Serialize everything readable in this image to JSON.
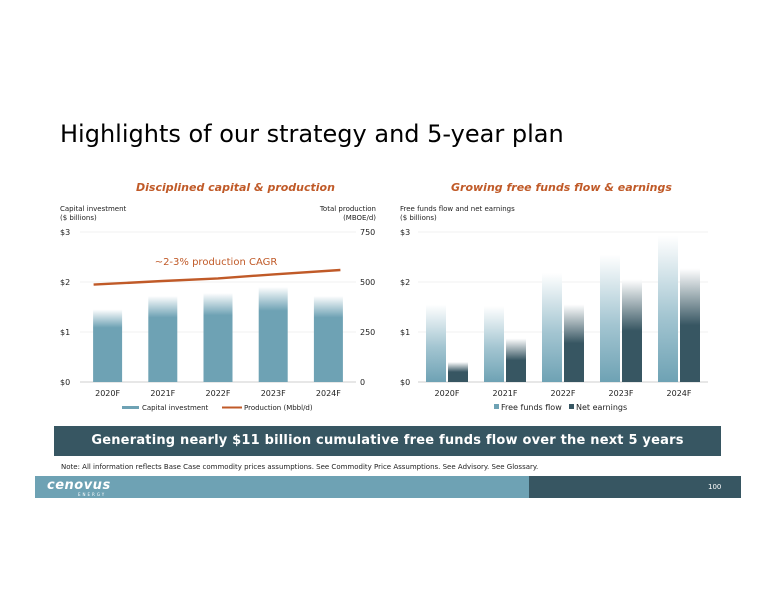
{
  "slide": {
    "title": "Highlights of our strategy and 5-year plan",
    "banner": "Generating nearly $11 billion cumulative free funds flow over the next 5 years",
    "note": "Note: All information reflects Base Case commodity prices assumptions. See Commodity Price Assumptions. See Advisory. See Glossary.",
    "logo": "cenovus",
    "logo_sub": "ENERGY",
    "page_number": "100"
  },
  "colors": {
    "bar_blue": "#6ea2b4",
    "bar_dark": "#375662",
    "line_orange": "#c05a28",
    "banner": "#375662"
  },
  "chart_data": [
    {
      "type": "bar",
      "title": "Disciplined capital & production",
      "ylabel": "Capital investment\n($ billions)",
      "y2label": "Total production\n(MBOE/d)",
      "categories": [
        "2020F",
        "2021F",
        "2022F",
        "2023F",
        "2024F"
      ],
      "ylim": [
        0,
        3
      ],
      "y2lim": [
        0,
        750
      ],
      "yticks": [
        "$0",
        "$1",
        "$2",
        "$3"
      ],
      "y2ticks": [
        "0",
        "250",
        "500",
        "750"
      ],
      "series": [
        {
          "name": "Capital investment",
          "type": "bar",
          "axis": "left",
          "values": [
            1.45,
            1.72,
            1.78,
            1.9,
            1.72
          ]
        },
        {
          "name": "Production (Mbbl/d)",
          "type": "line",
          "axis": "right",
          "values": [
            487,
            505,
            518,
            538,
            560
          ]
        }
      ],
      "annotation": "~2-3% production CAGR",
      "legend": "bottom"
    },
    {
      "type": "bar",
      "title": "Growing free funds flow & earnings",
      "ylabel": "Free funds flow and net earnings\n($ billions)",
      "categories": [
        "2020F",
        "2021F",
        "2022F",
        "2023F",
        "2024F"
      ],
      "ylim": [
        0,
        3
      ],
      "yticks": [
        "$0",
        "$1",
        "$2",
        "$3"
      ],
      "series": [
        {
          "name": "Free funds flow",
          "values": [
            1.55,
            1.52,
            2.18,
            2.55,
            2.92
          ]
        },
        {
          "name": "Net earnings",
          "values": [
            0.4,
            0.87,
            1.55,
            2.05,
            2.27
          ]
        }
      ],
      "legend": "bottom"
    }
  ]
}
